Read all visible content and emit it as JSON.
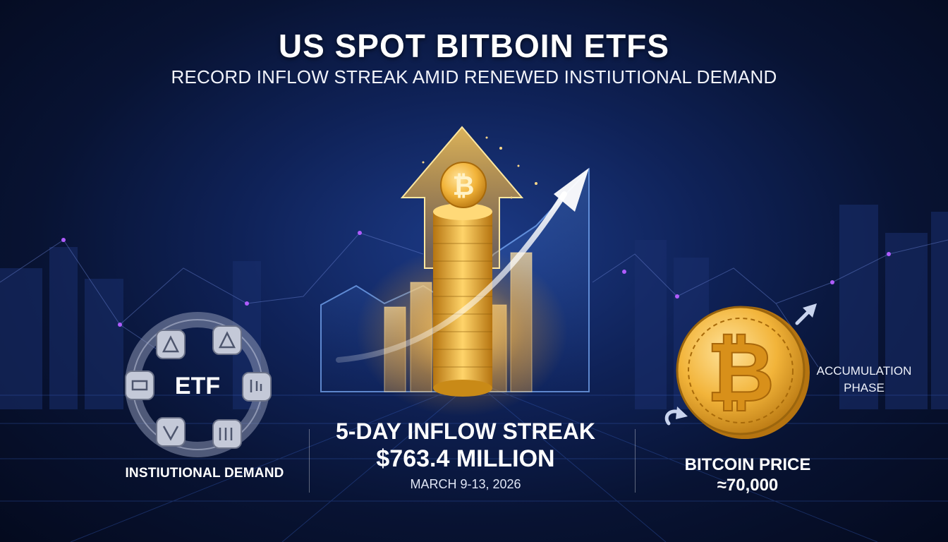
{
  "header": {
    "title": "US SPOT BITBOIN ETFS",
    "subtitle": "RECORD INFLOW STREAK AMID RENEWED INSTIUTIONAL DEMAND"
  },
  "center": {
    "streak_label": "5-DAY INFLOW STREAK",
    "amount": "$763.4 MILLION",
    "dates": "MARCH 9-13, 2026"
  },
  "left": {
    "ring_label": "ETF",
    "caption": "INSTIUTIONAL DEMAND"
  },
  "right": {
    "phase_line1": "ACCUMULATION",
    "phase_line2": "PHASE",
    "price_label": "BITCOIN PRICE",
    "price_value": "≈70,000"
  },
  "colors": {
    "gold": "#f0b53a",
    "gold_dark": "#c98a17",
    "accent_blue": "#5aa0ff",
    "background": "#0f2258"
  }
}
